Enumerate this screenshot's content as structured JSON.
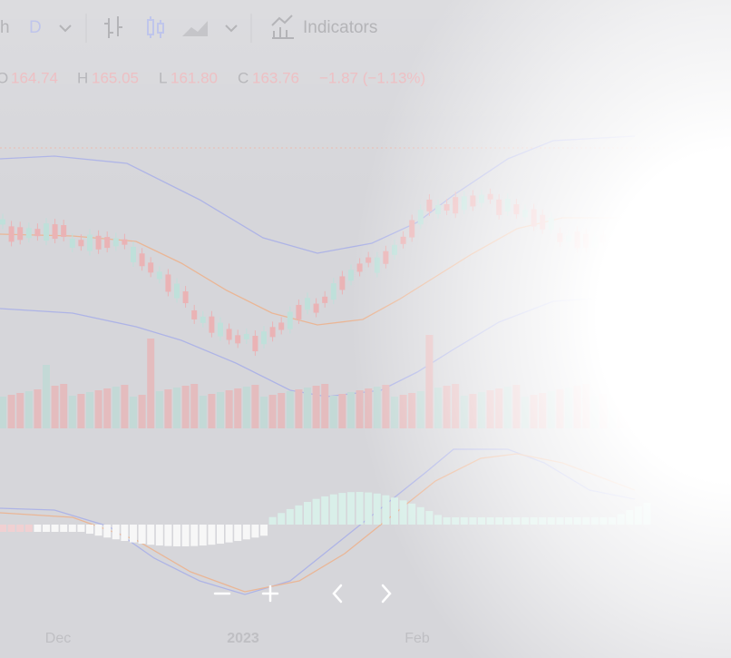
{
  "toolbar": {
    "interval_partial": "h",
    "interval": "D",
    "indicators": "Indicators"
  },
  "legend": {
    "open_label": "O",
    "open": "164.74",
    "high_label": "H",
    "high": "165.05",
    "low_label": "L",
    "low": "161.80",
    "close_label": "C",
    "close": "163.76",
    "change": "−1.87 (−1.13%)"
  },
  "x_axis": [
    "Dec",
    "2023",
    "Feb"
  ]
}
